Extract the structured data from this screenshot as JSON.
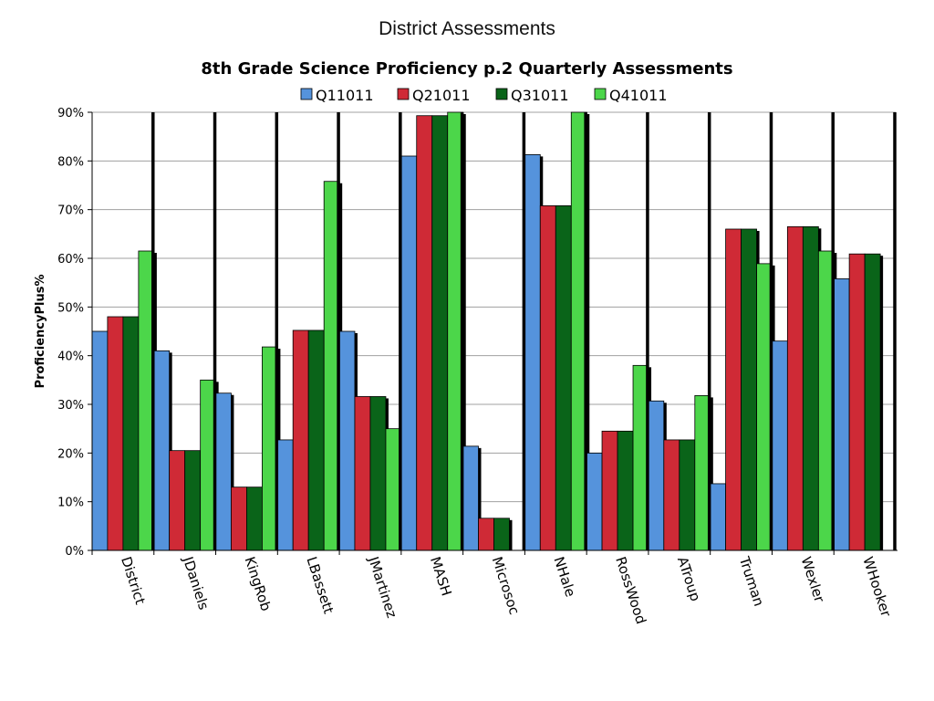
{
  "slide_title": "District Assessments",
  "chart_data": {
    "type": "bar",
    "title": "8th Grade Science Proficiency p.2 Quarterly Assessments",
    "ylabel": "ProficiencyPlus%",
    "xlabel": "",
    "ylim": [
      0,
      90
    ],
    "y_ticks": [
      "0%",
      "10%",
      "20%",
      "30%",
      "40%",
      "50%",
      "60%",
      "70%",
      "80%",
      "90%"
    ],
    "grid": true,
    "legend_position": "top",
    "categories": [
      "District",
      "JDaniels",
      "KingRob",
      "LBassett",
      "JMartinez",
      "MASH",
      "Microsoc",
      "NHale",
      "RossWood",
      "ATroup",
      "Truman",
      "Wexler",
      "WHooker"
    ],
    "series": [
      {
        "name": "Q11011",
        "color": "#5593dc",
        "values": [
          45,
          41,
          32.3,
          22.7,
          45,
          81,
          21.4,
          81.3,
          20,
          30.7,
          13.7,
          43,
          55.8
        ]
      },
      {
        "name": "Q21011",
        "color": "#cf2a36",
        "values": [
          48,
          20.5,
          13,
          45.2,
          31.6,
          89.3,
          6.6,
          70.8,
          24.5,
          22.7,
          66,
          66.5,
          60.9
        ]
      },
      {
        "name": "Q31011",
        "color": "#0a6419",
        "values": [
          48,
          20.5,
          13,
          45.2,
          31.6,
          89.3,
          6.6,
          70.8,
          24.5,
          22.7,
          66,
          66.5,
          60.9
        ]
      },
      {
        "name": "Q41011",
        "color": "#4cd64a",
        "values": [
          61.5,
          35,
          41.8,
          75.8,
          25,
          90,
          null,
          90,
          38,
          31.8,
          58.9,
          61.5,
          null
        ]
      }
    ]
  }
}
